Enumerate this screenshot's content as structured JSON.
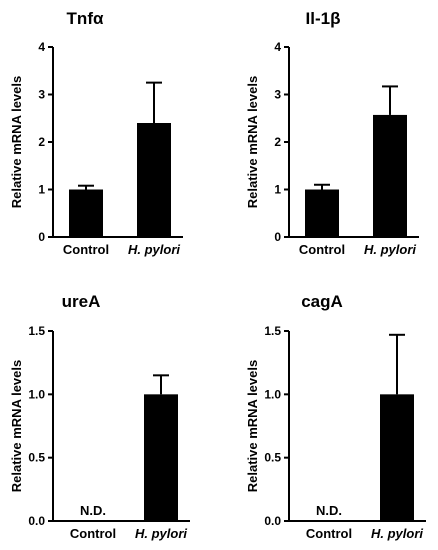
{
  "chart_data": [
    {
      "type": "bar",
      "title": "Tnfα",
      "ylabel": "Relative mRNA levels",
      "categories": [
        "Control",
        "H. pylori"
      ],
      "values": [
        1.0,
        2.4
      ],
      "error": [
        0.08,
        0.85
      ],
      "ylim": [
        0,
        4
      ],
      "yticks": [
        "0",
        "1",
        "2",
        "3",
        "4"
      ],
      "ytick_values": [
        0,
        1,
        2,
        3,
        4
      ],
      "annotations": [],
      "grid": false
    },
    {
      "type": "bar",
      "title": "Il-1β",
      "ylabel": "Relative mRNA levels",
      "categories": [
        "Control",
        "H. pylori"
      ],
      "values": [
        1.0,
        2.57
      ],
      "error": [
        0.1,
        0.6
      ],
      "ylim": [
        0,
        4
      ],
      "yticks": [
        "0",
        "1",
        "2",
        "3",
        "4"
      ],
      "ytick_values": [
        0,
        1,
        2,
        3,
        4
      ],
      "annotations": [],
      "grid": false
    },
    {
      "type": "bar",
      "title": "ureA",
      "ylabel": "Relative mRNA levels",
      "categories": [
        "Control",
        "H. pylori"
      ],
      "values": [
        null,
        1.0
      ],
      "error": [
        null,
        0.15
      ],
      "ylim": [
        0,
        1.5
      ],
      "yticks": [
        "0.0",
        "0.5",
        "1.0",
        "1.5"
      ],
      "ytick_values": [
        0,
        0.5,
        1.0,
        1.5
      ],
      "annotations": [
        "N.D.",
        ""
      ],
      "grid": false
    },
    {
      "type": "bar",
      "title": "cagA",
      "ylabel": "Relative mRNA levels",
      "categories": [
        "Control",
        "H. pylori"
      ],
      "values": [
        null,
        1.0
      ],
      "error": [
        null,
        0.47
      ],
      "ylim": [
        0,
        1.5
      ],
      "yticks": [
        "0.0",
        "0.5",
        "1.0",
        "1.5"
      ],
      "ytick_values": [
        0,
        0.5,
        1.0,
        1.5
      ],
      "annotations": [
        "N.D.",
        ""
      ],
      "grid": false
    }
  ]
}
